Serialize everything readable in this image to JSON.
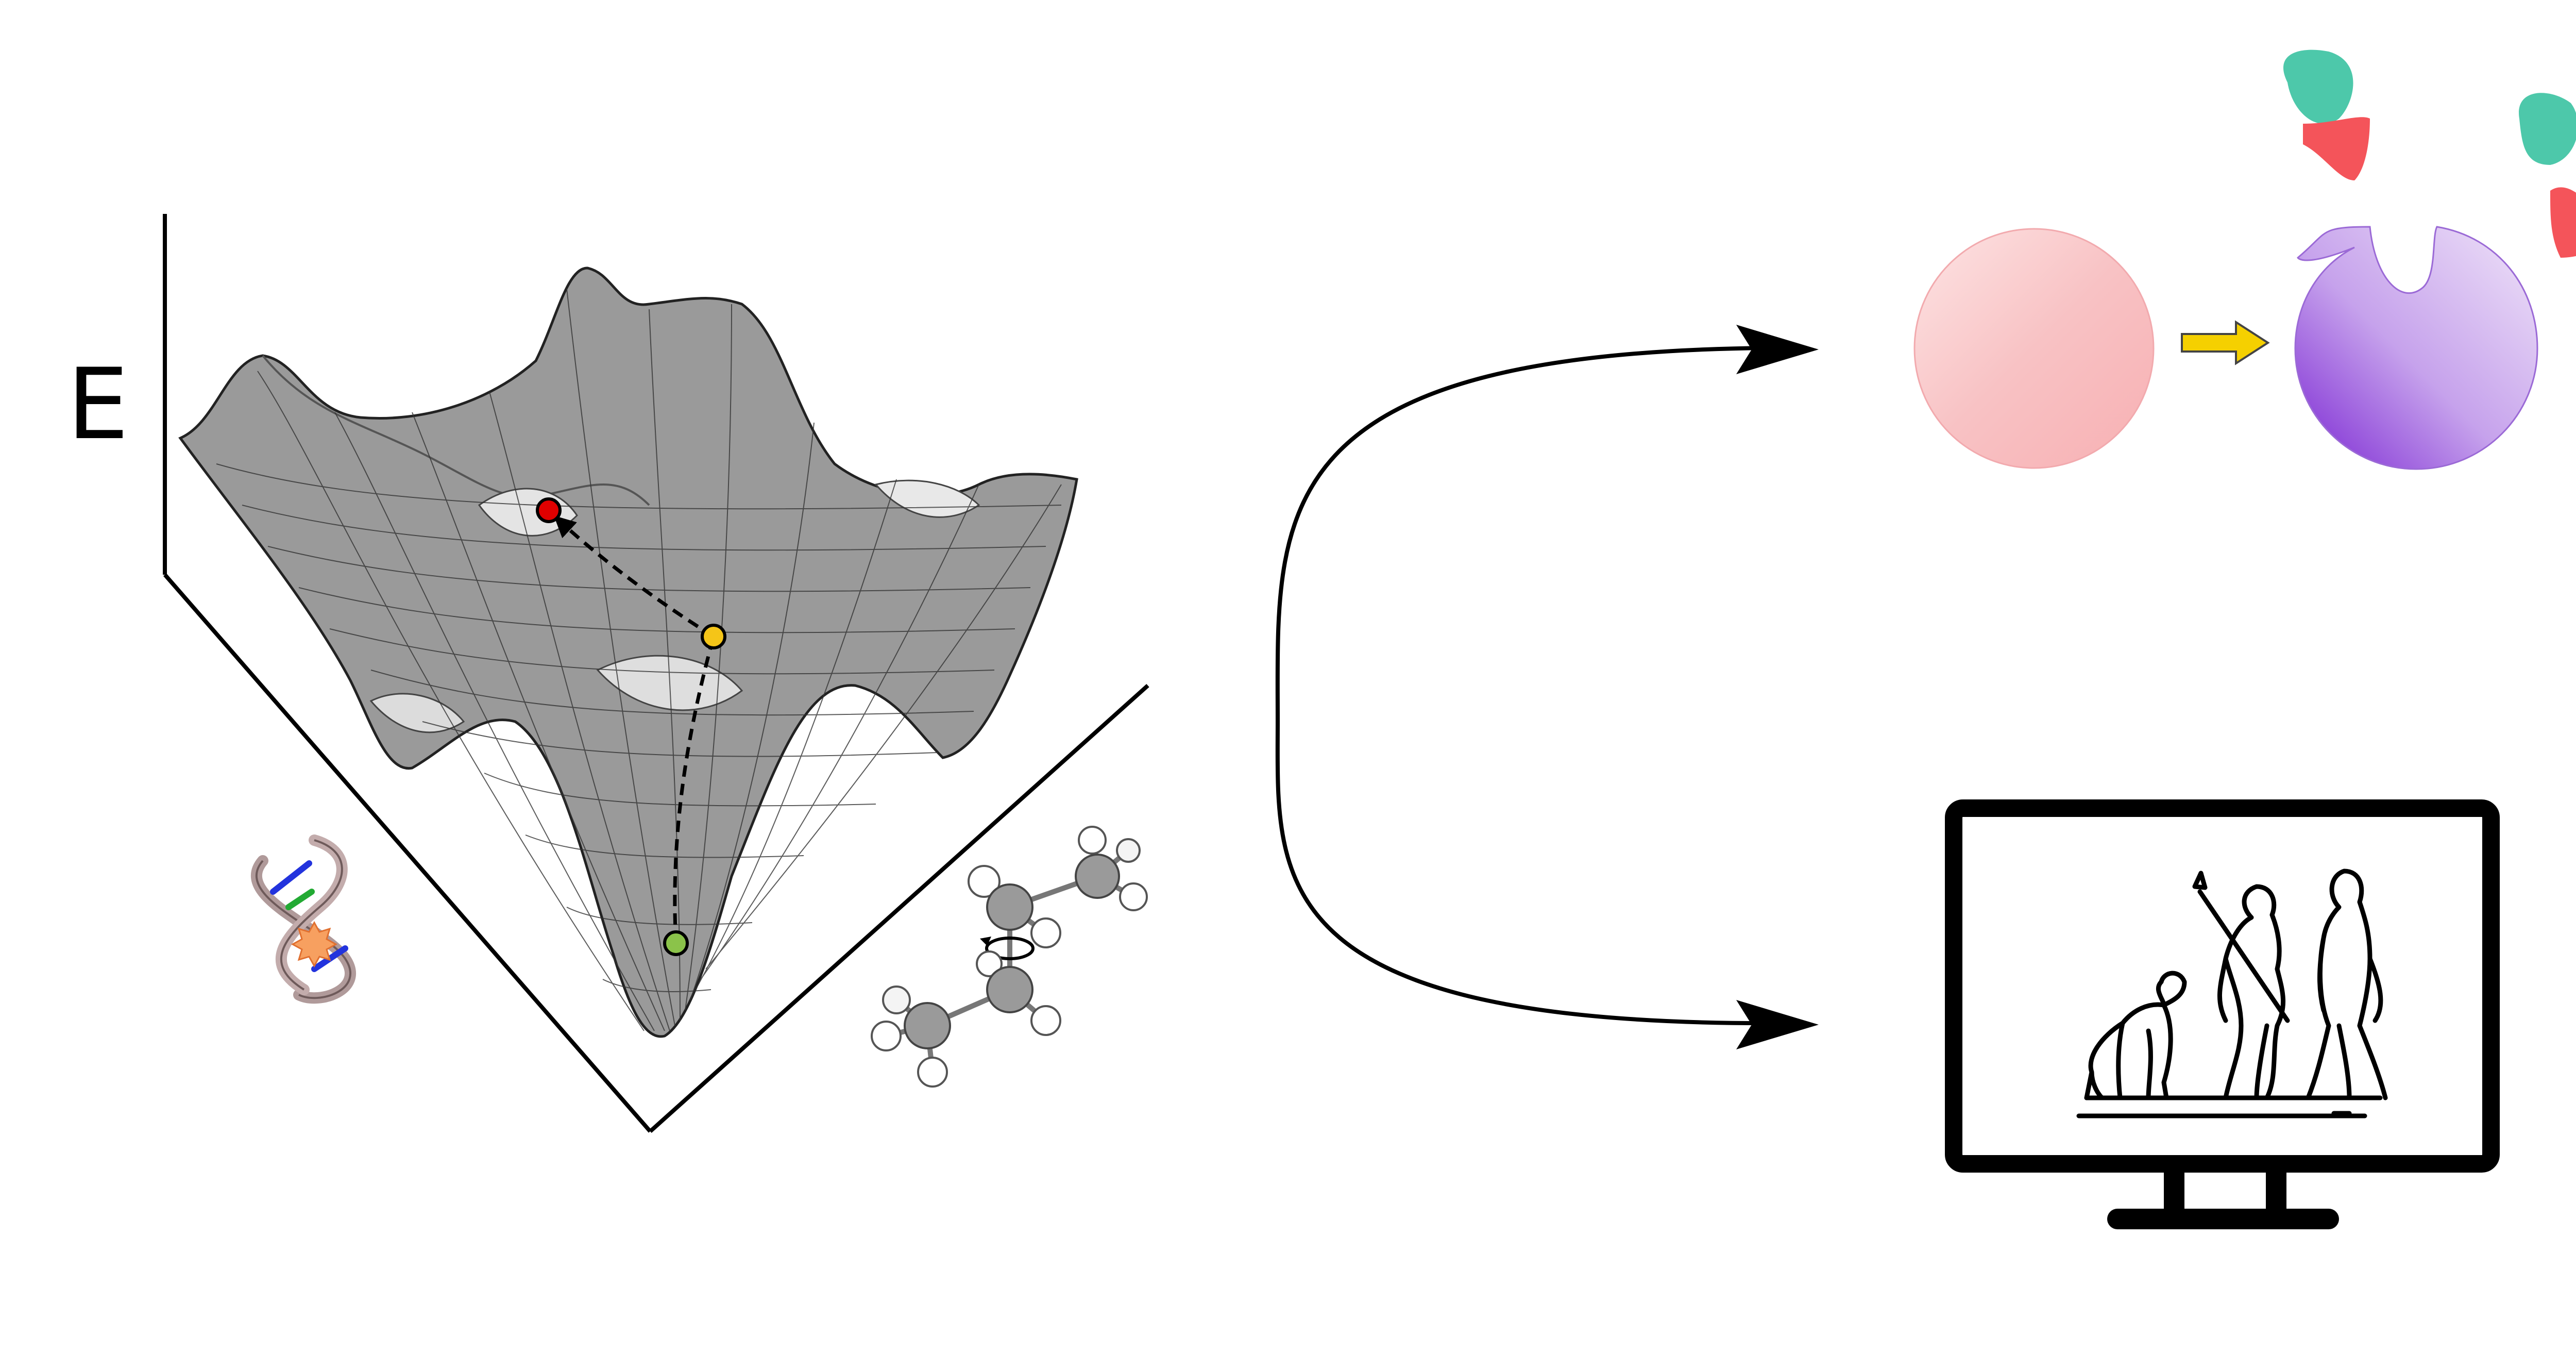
{
  "energy_axis_label": "E",
  "colors": {
    "path_start": "#8bc34a",
    "path_mid": "#f5c518",
    "path_end": "#e00000",
    "cell_pink": "#f9b4b6",
    "cell_purple": "#a56fe0",
    "particle_teal": "#4dc8aa",
    "particle_red": "#f4545a",
    "transition_arrow": "#f5d000",
    "monitor": "#000000",
    "dna_backbone": "#b09a9a",
    "dna_base_blue": "#2233dd",
    "dna_base_green": "#22aa33",
    "dna_damage": "#f7a060"
  },
  "icons": {
    "energy_surface": "energy-landscape-surface",
    "dna": "dna-damage-icon",
    "molecule": "ethane-rotation-molecule-icon",
    "cell_transition": "cell-state-change-icon",
    "monitor": "evolution-monitor-icon"
  }
}
